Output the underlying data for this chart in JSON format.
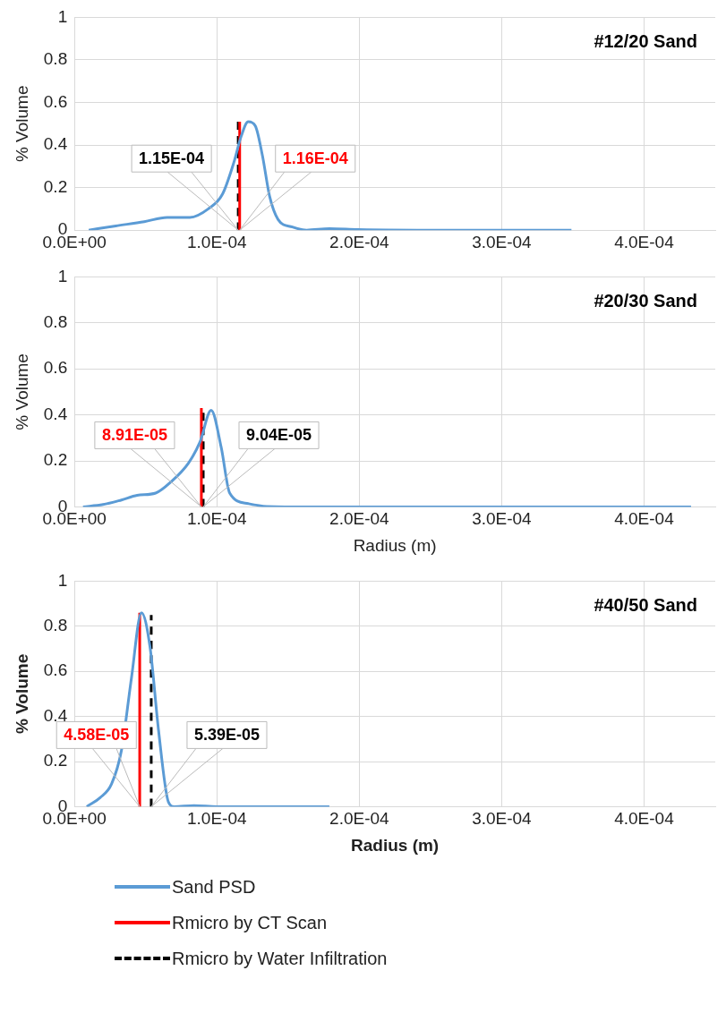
{
  "chart_data": [
    {
      "type": "line",
      "title": "#12/20 Sand",
      "ylabel": "% Volume",
      "xlim": [
        0,
        0.00045
      ],
      "ylim": [
        0,
        1
      ],
      "xticks": [
        {
          "value": 0,
          "label": "0.0E+00"
        },
        {
          "value": 0.0001,
          "label": "1.0E-04"
        },
        {
          "value": 0.0002,
          "label": "2.0E-04"
        },
        {
          "value": 0.0003,
          "label": "3.0E-04"
        },
        {
          "value": 0.0004,
          "label": "4.0E-04"
        }
      ],
      "yticks": [
        0,
        0.2,
        0.4,
        0.6,
        0.8,
        1
      ],
      "grid": true,
      "series": [
        {
          "color": "#5b9bd5",
          "x": [
            1e-05,
            2.9e-05,
            4.9e-05,
            6.5e-05,
            8.1e-05,
            9.4e-05,
            0.000104,
            0.000112,
            0.000117,
            0.000122,
            0.000127,
            0.000132,
            0.000137,
            0.000143,
            0.000153,
            0.000163,
            0.000179,
            0.000199,
            0.000257,
            0.000349
          ],
          "values": [
            0,
            0.02,
            0.04,
            0.06,
            0.06,
            0.1,
            0.17,
            0.32,
            0.44,
            0.51,
            0.49,
            0.35,
            0.16,
            0.05,
            0.015,
            0,
            0.007,
            0.003,
            0,
            0
          ]
        },
        {
          "color": "#ff0000",
          "x": [
            0.000116,
            0.000116
          ],
          "values": [
            0,
            0.51
          ]
        },
        {
          "color": "#000000",
          "line_style": "dashed",
          "x": [
            0.000115,
            0.000115
          ],
          "values": [
            0,
            0.51
          ]
        }
      ],
      "annotations": [
        "1.16E-04",
        "1.15E-04"
      ]
    },
    {
      "type": "line",
      "title": "#20/30 Sand",
      "xlabel": "Radius (m)",
      "ylabel": "% Volume",
      "xlim": [
        0,
        0.00045
      ],
      "ylim": [
        0,
        1
      ],
      "xticks": [
        {
          "value": 0,
          "label": "0.0E+00"
        },
        {
          "value": 0.0001,
          "label": "1.0E-04"
        },
        {
          "value": 0.0002,
          "label": "2.0E-04"
        },
        {
          "value": 0.0003,
          "label": "3.0E-04"
        },
        {
          "value": 0.0004,
          "label": "4.0E-04"
        }
      ],
      "yticks": [
        0,
        0.2,
        0.4,
        0.6,
        0.8,
        1
      ],
      "grid": true,
      "series": [
        {
          "color": "#5b9bd5",
          "x": [
            6e-06,
            2e-05,
            3.3e-05,
            4.4e-05,
            5.7e-05,
            6.8e-05,
            8e-05,
            8.8e-05,
            9.6e-05,
            0.000103,
            0.000109,
            0.000122,
            0.000135,
            0.000166,
            0.000433
          ],
          "values": [
            0,
            0.01,
            0.03,
            0.05,
            0.06,
            0.11,
            0.19,
            0.28,
            0.42,
            0.26,
            0.06,
            0.014,
            0.002,
            0,
            0
          ]
        },
        {
          "color": "#ff0000",
          "x": [
            8.91e-05,
            8.91e-05
          ],
          "values": [
            0,
            0.43
          ]
        },
        {
          "color": "#000000",
          "line_style": "dashed",
          "x": [
            9.04e-05,
            9.04e-05
          ],
          "values": [
            0,
            0.42
          ]
        }
      ],
      "annotations": [
        "8.91E-05",
        "9.04E-05"
      ]
    },
    {
      "type": "line",
      "title": "#40/50 Sand",
      "xlabel": "Radius (m)",
      "ylabel": "% Volume",
      "xlim": [
        0,
        0.00045
      ],
      "ylim": [
        0,
        1
      ],
      "xticks": [
        {
          "value": 0,
          "label": "0.0E+00"
        },
        {
          "value": 0.0001,
          "label": "1.0E-04"
        },
        {
          "value": 0.0002,
          "label": "2.0E-04"
        },
        {
          "value": 0.0003,
          "label": "3.0E-04"
        },
        {
          "value": 0.0004,
          "label": "4.0E-04"
        }
      ],
      "yticks": [
        0,
        0.2,
        0.4,
        0.6,
        0.8,
        1
      ],
      "grid": true,
      "legend": "bottom",
      "series": [
        {
          "name": "Sand PSD",
          "color": "#5b9bd5",
          "x": [
            8.6e-06,
            1.8e-05,
            2.6e-05,
            3.3e-05,
            4e-05,
            4.7e-05,
            5.3e-05,
            5.9e-05,
            6.6e-05,
            7e-05,
            8.4e-05,
            0.0001,
            0.000179
          ],
          "values": [
            0,
            0.04,
            0.1,
            0.25,
            0.57,
            0.86,
            0.71,
            0.34,
            0.02,
            0,
            0.005,
            0,
            0
          ]
        },
        {
          "name": "Rmicro by CT Scan",
          "color": "#ff0000",
          "x": [
            4.58e-05,
            4.58e-05
          ],
          "values": [
            0,
            0.86
          ]
        },
        {
          "name": "Rmicro by Water Infiltration",
          "color": "#000000",
          "line_style": "dashed",
          "x": [
            5.39e-05,
            5.39e-05
          ],
          "values": [
            0,
            0.85
          ]
        }
      ],
      "annotations": [
        "4.58E-05",
        "5.39E-05"
      ]
    }
  ]
}
